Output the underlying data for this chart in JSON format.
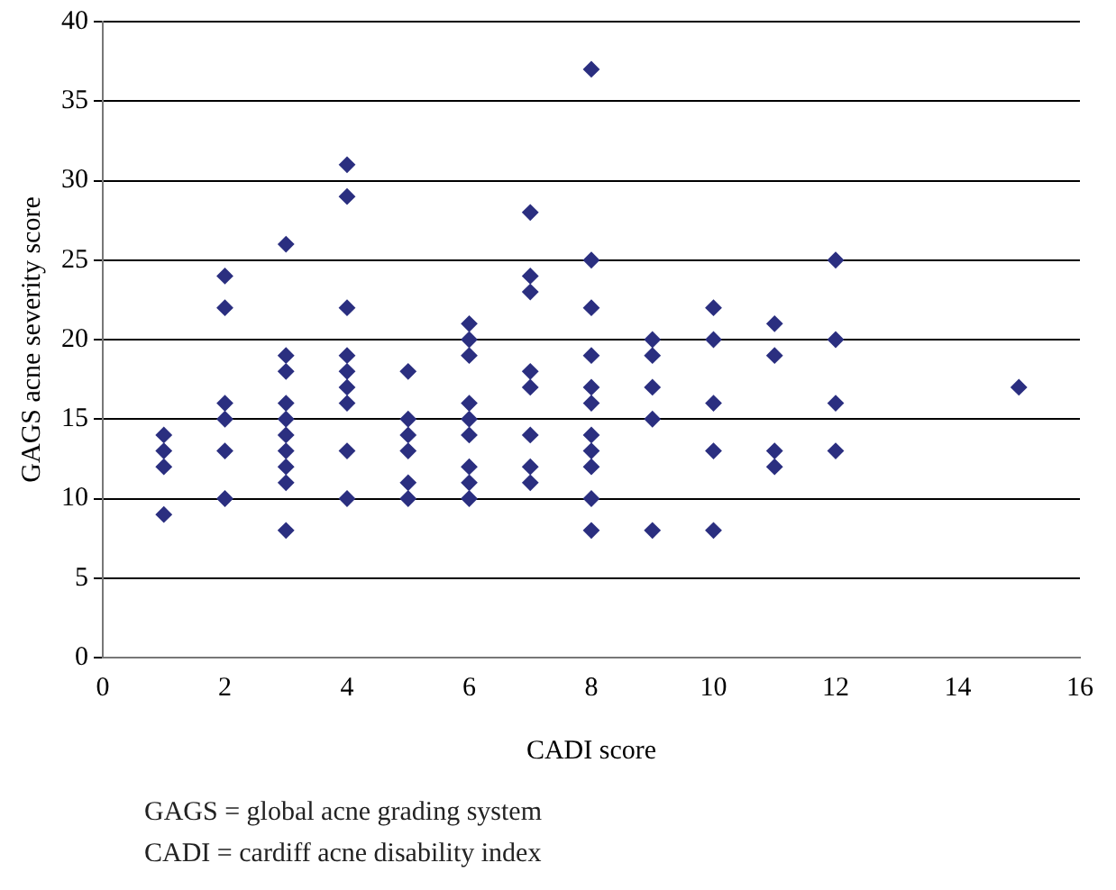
{
  "chart_data": {
    "type": "scatter",
    "xlabel": "CADI score",
    "ylabel": "GAGS acne severity score",
    "annotations": [
      "GAGS = global acne grading system",
      "CADI = cardiff acne disability index"
    ],
    "x": [
      1,
      1,
      1,
      1,
      2,
      2,
      2,
      2,
      2,
      2,
      3,
      3,
      3,
      3,
      3,
      3,
      3,
      3,
      3,
      3,
      4,
      4,
      4,
      4,
      4,
      4,
      4,
      4,
      4,
      5,
      5,
      5,
      5,
      5,
      5,
      6,
      6,
      6,
      6,
      6,
      6,
      6,
      6,
      6,
      7,
      7,
      7,
      7,
      7,
      7,
      7,
      7,
      8,
      8,
      8,
      8,
      8,
      8,
      8,
      8,
      8,
      8,
      8,
      9,
      9,
      9,
      9,
      9,
      10,
      10,
      10,
      10,
      10,
      11,
      11,
      11,
      11,
      12,
      12,
      12,
      12,
      15
    ],
    "values": [
      14,
      13,
      12,
      9,
      24,
      22,
      16,
      15,
      13,
      10,
      26,
      19,
      18,
      16,
      15,
      14,
      13,
      12,
      11,
      8,
      31,
      29,
      22,
      19,
      18,
      17,
      16,
      13,
      10,
      18,
      15,
      14,
      13,
      11,
      10,
      21,
      20,
      19,
      16,
      15,
      14,
      12,
      11,
      10,
      28,
      24,
      23,
      18,
      17,
      14,
      12,
      11,
      37,
      25,
      22,
      19,
      17,
      16,
      14,
      13,
      12,
      10,
      8,
      20,
      19,
      17,
      15,
      8,
      22,
      20,
      16,
      13,
      8,
      21,
      19,
      13,
      12,
      25,
      20,
      16,
      13,
      17
    ],
    "color": "#2b2f80",
    "marker": "diamond",
    "grid": "y",
    "legend": false,
    "xlim": [
      0,
      16
    ],
    "xticks": [
      0,
      2,
      4,
      6,
      8,
      10,
      12,
      14,
      16
    ],
    "ylim": [
      0,
      40
    ],
    "yticks": [
      0,
      5,
      10,
      15,
      20,
      25,
      30,
      35,
      40
    ]
  }
}
